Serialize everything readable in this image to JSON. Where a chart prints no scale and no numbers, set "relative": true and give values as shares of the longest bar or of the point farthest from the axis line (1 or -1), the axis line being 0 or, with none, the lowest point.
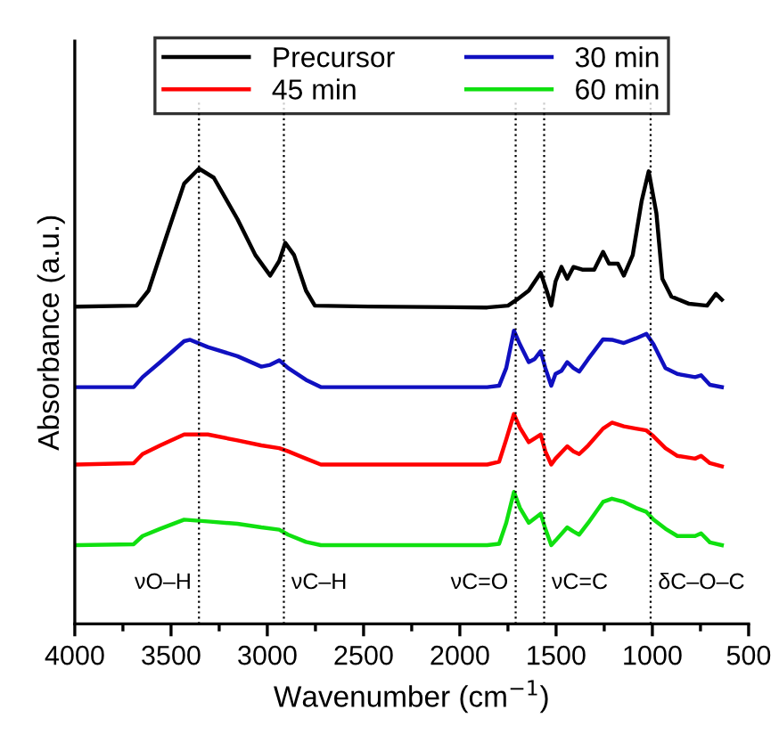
{
  "chart_data": {
    "type": "line",
    "relative": true,
    "xlabel": "Wavenumber (cm$^{−1}$)",
    "ylabel": "Absorbance (a.u.)",
    "xlim": [
      4000,
      500
    ],
    "xticks": [
      4000,
      3500,
      3000,
      2500,
      2000,
      1500,
      1000,
      500
    ],
    "grid": false,
    "legend": "top",
    "marker": "none",
    "line_style": "solid",
    "tick_labels": "x",
    "series": [
      {
        "name": "Precursor",
        "color": "#000000",
        "x": [
          3988,
          3679,
          3617,
          3525,
          3432,
          3355,
          3278,
          3155,
          3062,
          2985,
          2938,
          2907,
          2861,
          2799,
          2753,
          2475,
          1858,
          1750,
          1704,
          1642,
          1580,
          1549,
          1525,
          1503,
          1472,
          1442,
          1410,
          1364,
          1302,
          1256,
          1225,
          1179,
          1148,
          1102,
          1056,
          1019,
          979,
          948,
          901,
          809,
          716,
          670,
          639
        ],
        "values": [
          0.697,
          0.699,
          0.732,
          0.85,
          0.967,
          1,
          0.98,
          0.889,
          0.81,
          0.765,
          0.797,
          0.837,
          0.81,
          0.732,
          0.699,
          0.697,
          0.695,
          0.699,
          0.712,
          0.732,
          0.771,
          0.732,
          0.699,
          0.752,
          0.784,
          0.758,
          0.784,
          0.778,
          0.778,
          0.817,
          0.791,
          0.791,
          0.765,
          0.81,
          0.928,
          0.994,
          0.902,
          0.758,
          0.719,
          0.703,
          0.699,
          0.725,
          0.712
        ]
      },
      {
        "name": "30 min",
        "color": "#1010c0",
        "x": [
          3988,
          3694,
          3648,
          3556,
          3432,
          3401,
          3309,
          3155,
          3031,
          2985,
          2938,
          2892,
          2799,
          2722,
          1858,
          1796,
          1759,
          1719,
          1688,
          1642,
          1611,
          1580,
          1556,
          1525,
          1503,
          1472,
          1442,
          1410,
          1380,
          1333,
          1256,
          1210,
          1148,
          1086,
          1031,
          994,
          932,
          870,
          778,
          747,
          701,
          639
        ],
        "values": [
          0.52,
          0.52,
          0.542,
          0.575,
          0.621,
          0.624,
          0.608,
          0.588,
          0.565,
          0.569,
          0.579,
          0.562,
          0.536,
          0.52,
          0.52,
          0.523,
          0.562,
          0.644,
          0.614,
          0.575,
          0.582,
          0.599,
          0.562,
          0.523,
          0.549,
          0.556,
          0.575,
          0.562,
          0.554,
          0.582,
          0.625,
          0.624,
          0.617,
          0.627,
          0.637,
          0.614,
          0.562,
          0.549,
          0.542,
          0.546,
          0.525,
          0.52
        ]
      },
      {
        "name": "45 min",
        "color": "#ff0000",
        "x": [
          3988,
          3694,
          3648,
          3556,
          3432,
          3309,
          3155,
          3031,
          2938,
          2892,
          2799,
          2722,
          1858,
          1796,
          1759,
          1719,
          1688,
          1642,
          1580,
          1556,
          1525,
          1503,
          1442,
          1410,
          1380,
          1333,
          1256,
          1210,
          1148,
          1086,
          1031,
          994,
          932,
          870,
          778,
          747,
          701,
          639
        ],
        "values": [
          0.35,
          0.353,
          0.373,
          0.392,
          0.416,
          0.416,
          0.403,
          0.392,
          0.386,
          0.379,
          0.363,
          0.35,
          0.35,
          0.356,
          0.405,
          0.461,
          0.431,
          0.399,
          0.416,
          0.379,
          0.35,
          0.363,
          0.39,
          0.379,
          0.373,
          0.392,
          0.429,
          0.442,
          0.434,
          0.429,
          0.425,
          0.412,
          0.386,
          0.369,
          0.363,
          0.369,
          0.353,
          0.346
        ]
      },
      {
        "name": "60 min",
        "color": "#10e010",
        "x": [
          3988,
          3694,
          3648,
          3556,
          3432,
          3309,
          3155,
          3031,
          2938,
          2892,
          2799,
          2722,
          1858,
          1796,
          1759,
          1719,
          1688,
          1642,
          1580,
          1556,
          1525,
          1503,
          1442,
          1410,
          1380,
          1333,
          1256,
          1210,
          1148,
          1086,
          1031,
          994,
          932,
          870,
          778,
          747,
          701,
          639
        ],
        "values": [
          0.173,
          0.175,
          0.193,
          0.209,
          0.229,
          0.225,
          0.22,
          0.212,
          0.207,
          0.196,
          0.18,
          0.173,
          0.173,
          0.176,
          0.222,
          0.29,
          0.255,
          0.222,
          0.242,
          0.209,
          0.173,
          0.183,
          0.212,
          0.203,
          0.196,
          0.222,
          0.268,
          0.275,
          0.268,
          0.255,
          0.246,
          0.229,
          0.209,
          0.193,
          0.193,
          0.199,
          0.179,
          0.173
        ]
      }
    ],
    "ref_lines": [
      {
        "axis": "x",
        "value": 3355,
        "label": "νO–H",
        "color": "#000000",
        "line_style": "dotted"
      },
      {
        "axis": "x",
        "value": 2914,
        "label": "νC–H",
        "color": "#000000",
        "line_style": "dotted"
      },
      {
        "axis": "x",
        "value": 1710,
        "label": "νC=O",
        "color": "#000000",
        "line_style": "dotted"
      },
      {
        "axis": "x",
        "value": 1562,
        "label": "νC=C",
        "color": "#000000",
        "line_style": "dotted"
      },
      {
        "axis": "x",
        "value": 1009,
        "label": "δC–O–C",
        "color": "#000000",
        "line_style": "dotted"
      }
    ]
  }
}
